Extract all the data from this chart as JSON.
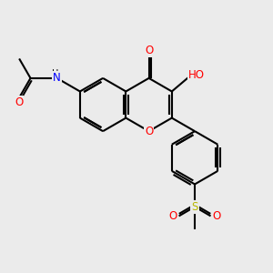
{
  "background_color": "#ebebeb",
  "bond_color": "#000000",
  "bond_width": 1.5,
  "atom_colors": {
    "O": "#ff0000",
    "N": "#0000ff",
    "S": "#b8b800",
    "C": "#000000",
    "H": "#000000"
  },
  "font_size": 8.5,
  "figsize": [
    3.0,
    3.0
  ],
  "dpi": 100
}
